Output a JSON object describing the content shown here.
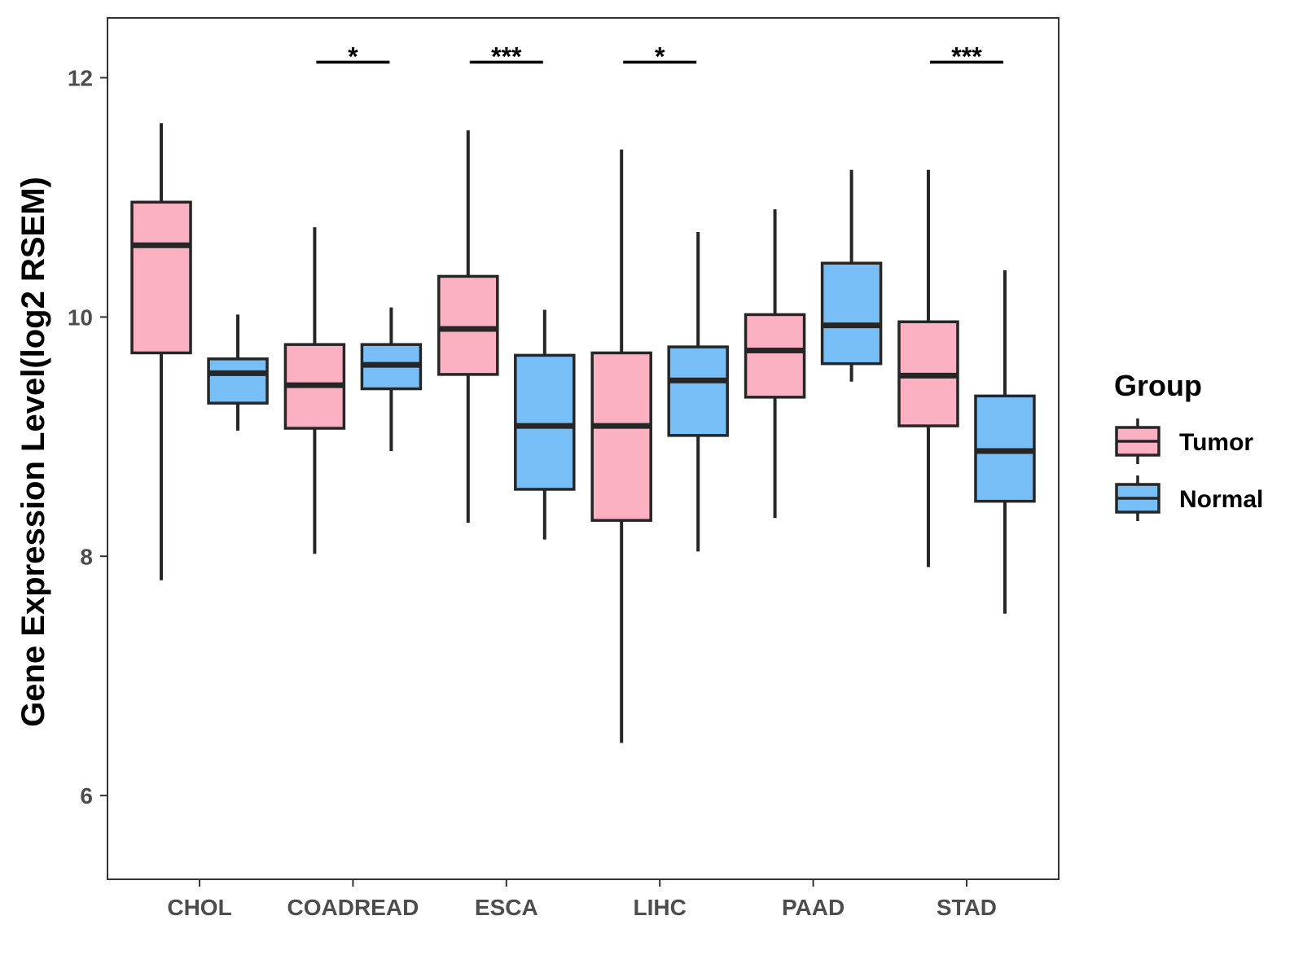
{
  "chart_data": {
    "type": "boxplot",
    "title": "",
    "xlabel": "",
    "ylabel": "Gene Expression Level(log2 RSEM)",
    "ylim": [
      5.3,
      12.5
    ],
    "yticks": [
      6,
      8,
      10,
      12
    ],
    "categories": [
      "CHOL",
      "COADREAD",
      "ESCA",
      "LIHC",
      "PAAD",
      "STAD"
    ],
    "legend": {
      "title": "Group",
      "position": "right"
    },
    "series": [
      {
        "name": "Tumor",
        "color": "#FBB1C2",
        "boxes": [
          {
            "min": 7.8,
            "q1": 9.7,
            "median": 10.6,
            "q3": 10.96,
            "max": 11.62
          },
          {
            "min": 8.02,
            "q1": 9.07,
            "median": 9.43,
            "q3": 9.77,
            "max": 10.75
          },
          {
            "min": 8.28,
            "q1": 9.52,
            "median": 9.9,
            "q3": 10.34,
            "max": 11.56
          },
          {
            "min": 6.44,
            "q1": 8.3,
            "median": 9.09,
            "q3": 9.7,
            "max": 11.4
          },
          {
            "min": 8.32,
            "q1": 9.33,
            "median": 9.72,
            "q3": 10.02,
            "max": 10.9
          },
          {
            "min": 7.91,
            "q1": 9.09,
            "median": 9.51,
            "q3": 9.96,
            "max": 11.23
          }
        ]
      },
      {
        "name": "Normal",
        "color": "#78BFF8",
        "boxes": [
          {
            "min": 9.05,
            "q1": 9.28,
            "median": 9.53,
            "q3": 9.65,
            "max": 10.02
          },
          {
            "min": 8.88,
            "q1": 9.4,
            "median": 9.6,
            "q3": 9.77,
            "max": 10.08
          },
          {
            "min": 8.14,
            "q1": 8.56,
            "median": 9.09,
            "q3": 9.68,
            "max": 10.06
          },
          {
            "min": 8.04,
            "q1": 9.01,
            "median": 9.47,
            "q3": 9.75,
            "max": 10.71
          },
          {
            "min": 9.46,
            "q1": 9.61,
            "median": 9.93,
            "q3": 10.45,
            "max": 11.23
          },
          {
            "min": 7.52,
            "q1": 8.46,
            "median": 8.88,
            "q3": 9.34,
            "max": 10.39
          }
        ]
      }
    ],
    "significance": [
      {
        "category": "CHOL",
        "label": ""
      },
      {
        "category": "COADREAD",
        "label": "*"
      },
      {
        "category": "ESCA",
        "label": "***"
      },
      {
        "category": "LIHC",
        "label": "*"
      },
      {
        "category": "PAAD",
        "label": ""
      },
      {
        "category": "STAD",
        "label": "***"
      }
    ],
    "significance_y": 12.13
  }
}
